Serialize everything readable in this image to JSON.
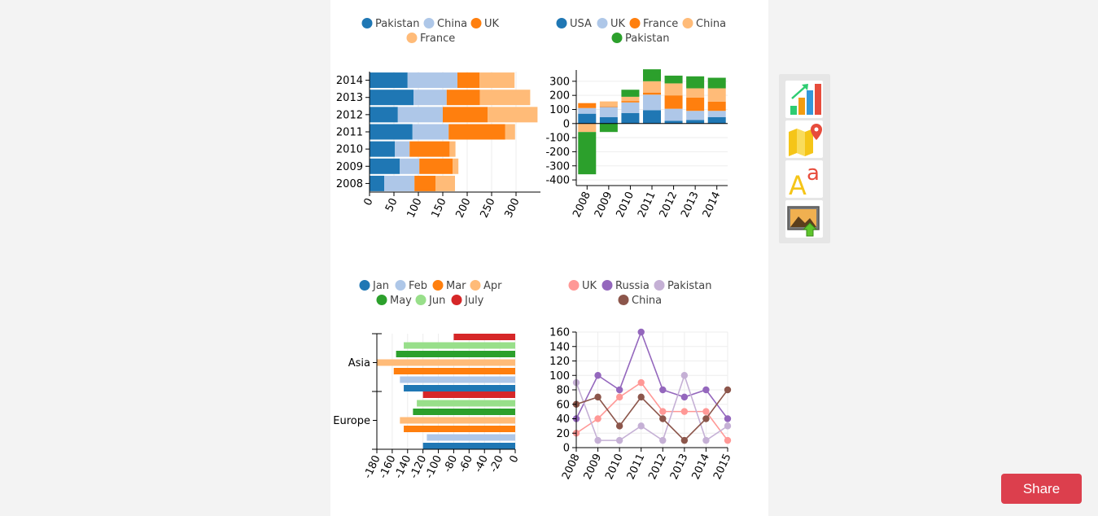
{
  "colors": {
    "blue": "#1f77b4",
    "lightblue": "#aec7e8",
    "orange": "#ff7f0e",
    "lightorange": "#ffbb78",
    "green": "#2ca02c",
    "lightgreen": "#98df8a",
    "red": "#d62728",
    "pink": "#ff9896",
    "purple": "#9467bd",
    "lightpurple": "#c5b0d5",
    "brown": "#8c564b"
  },
  "toolbar": {
    "items": [
      {
        "name": "chart-tool-icon"
      },
      {
        "name": "map-tool-icon"
      },
      {
        "name": "text-tool-icon"
      },
      {
        "name": "image-upload-icon"
      }
    ]
  },
  "share": {
    "label": "Share"
  },
  "chart_data": [
    {
      "type": "bar",
      "orientation": "horizontal",
      "stacked": true,
      "categories": [
        "2014",
        "2013",
        "2012",
        "2011",
        "2010",
        "2009",
        "2008"
      ],
      "series": [
        {
          "name": "Pakistan",
          "color": "#1f77b4",
          "values": [
            78,
            90,
            58,
            88,
            52,
            62,
            30
          ]
        },
        {
          "name": "China",
          "color": "#aec7e8",
          "values": [
            102,
            68,
            92,
            74,
            30,
            40,
            62
          ]
        },
        {
          "name": "UK",
          "color": "#ff7f0e",
          "values": [
            45,
            68,
            92,
            116,
            82,
            68,
            43
          ]
        },
        {
          "name": "France",
          "color": "#ffbb78",
          "values": [
            72,
            103,
            102,
            20,
            12,
            12,
            40
          ]
        }
      ],
      "xlim": [
        0,
        350
      ],
      "xticks": [
        "0",
        "50",
        "100",
        "150",
        "200",
        "250",
        "300"
      ],
      "legend": "top"
    },
    {
      "type": "bar",
      "stacked": true,
      "categories": [
        "2008",
        "2009",
        "2010",
        "2011",
        "2012",
        "2013",
        "2014"
      ],
      "series": [
        {
          "name": "USA",
          "color": "#1f77b4",
          "values": [
            70,
            45,
            75,
            95,
            20,
            25,
            45
          ]
        },
        {
          "name": "UK",
          "color": "#aec7e8",
          "values": [
            40,
            72,
            75,
            110,
            85,
            65,
            45
          ]
        },
        {
          "name": "France",
          "color": "#ff7f0e",
          "values": [
            35,
            5,
            10,
            15,
            95,
            95,
            65
          ]
        },
        {
          "name": "China",
          "color": "#ffbb78",
          "values": [
            -60,
            35,
            30,
            80,
            85,
            65,
            95
          ]
        },
        {
          "name": "Pakistan",
          "color": "#2ca02c",
          "values": [
            -300,
            -60,
            50,
            85,
            55,
            85,
            75
          ]
        }
      ],
      "ylim": [
        -440,
        380
      ],
      "yticks": [
        "300",
        "200",
        "100",
        "0",
        "-100",
        "-200",
        "-300",
        "-400"
      ],
      "legend": "top"
    },
    {
      "type": "bar",
      "orientation": "horizontal",
      "grouped": true,
      "categories": [
        "Asia",
        "Europe"
      ],
      "series": [
        {
          "name": "Jan",
          "color": "#1f77b4",
          "values": [
            -145,
            -120
          ]
        },
        {
          "name": "Feb",
          "color": "#aec7e8",
          "values": [
            -150,
            -115
          ]
        },
        {
          "name": "Mar",
          "color": "#ff7f0e",
          "values": [
            -158,
            -145
          ]
        },
        {
          "name": "Apr",
          "color": "#ffbb78",
          "values": [
            -180,
            -150
          ]
        },
        {
          "name": "May",
          "color": "#2ca02c",
          "values": [
            -155,
            -133
          ]
        },
        {
          "name": "Jun",
          "color": "#98df8a",
          "values": [
            -145,
            -128
          ]
        },
        {
          "name": "July",
          "color": "#d62728",
          "values": [
            -80,
            -120
          ]
        }
      ],
      "xlim": [
        -180,
        0
      ],
      "xticks": [
        "-180",
        "-160",
        "-140",
        "-120",
        "-100",
        "-80",
        "-60",
        "-40",
        "-20",
        "0"
      ],
      "legend": "top"
    },
    {
      "type": "line",
      "x": [
        "2008",
        "2009",
        "2010",
        "2011",
        "2012",
        "2013",
        "2014",
        "2015"
      ],
      "series": [
        {
          "name": "UK",
          "color": "#ff9896",
          "values": [
            20,
            40,
            70,
            90,
            50,
            50,
            50,
            10
          ]
        },
        {
          "name": "Russia",
          "color": "#9467bd",
          "values": [
            40,
            100,
            80,
            160,
            80,
            70,
            80,
            40
          ]
        },
        {
          "name": "Pakistan",
          "color": "#c5b0d5",
          "values": [
            90,
            10,
            10,
            30,
            10,
            100,
            10,
            30
          ]
        },
        {
          "name": "China",
          "color": "#8c564b",
          "values": [
            60,
            70,
            30,
            70,
            40,
            10,
            40,
            80
          ]
        }
      ],
      "ylim": [
        0,
        160
      ],
      "yticks": [
        "0",
        "20",
        "40",
        "60",
        "80",
        "100",
        "120",
        "140",
        "160"
      ],
      "legend": "top"
    }
  ]
}
